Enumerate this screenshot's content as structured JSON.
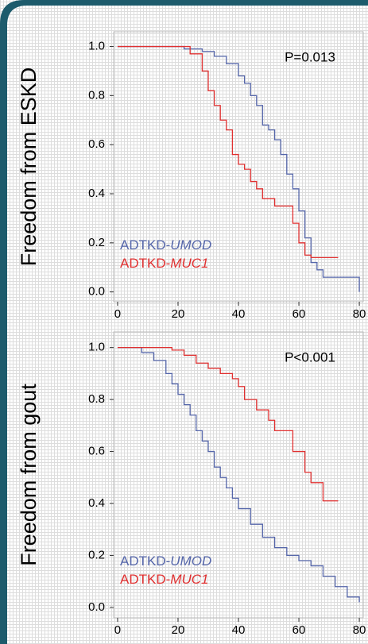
{
  "chart_data": [
    {
      "type": "step",
      "ylabel": "Freedom from ESKD",
      "annotation": "P=0.013",
      "xlim": [
        -1.3,
        81.3
      ],
      "ylim": [
        -0.04,
        1.06
      ],
      "xticks": [
        0,
        20,
        40,
        60,
        80
      ],
      "yticks": [
        {
          "value": 0,
          "label": "0.0"
        },
        {
          "value": 0.2,
          "label": "0.2"
        },
        {
          "value": 0.4,
          "label": "0.4"
        },
        {
          "value": 0.6,
          "label": "0.6"
        },
        {
          "value": 0.8,
          "label": "0.8"
        },
        {
          "value": 1,
          "label": "1.0"
        }
      ],
      "series": [
        {
          "name": "ADTKD-UMOD",
          "color": "#5566aa",
          "x": [
            0,
            15,
            22,
            28,
            32,
            36,
            40,
            42,
            44,
            46,
            48,
            50,
            52,
            54,
            56,
            58,
            60,
            62,
            64,
            66,
            68,
            78,
            80
          ],
          "values": [
            1.0,
            1.0,
            0.99,
            0.98,
            0.96,
            0.93,
            0.88,
            0.85,
            0.8,
            0.76,
            0.68,
            0.66,
            0.62,
            0.56,
            0.48,
            0.42,
            0.33,
            0.22,
            0.12,
            0.09,
            0.06,
            0.06,
            0.0
          ]
        },
        {
          "name": "ADTKD-MUC1",
          "color": "#e03030",
          "x": [
            0,
            20,
            24,
            28,
            30,
            32,
            34,
            36,
            38,
            40,
            42,
            44,
            46,
            48,
            52,
            56,
            58,
            60,
            62,
            64,
            73
          ],
          "values": [
            1.0,
            1.0,
            0.97,
            0.9,
            0.82,
            0.76,
            0.7,
            0.66,
            0.56,
            0.52,
            0.5,
            0.45,
            0.42,
            0.38,
            0.35,
            0.35,
            0.28,
            0.2,
            0.15,
            0.14,
            0.14
          ]
        }
      ]
    },
    {
      "type": "step",
      "ylabel": "Freedom from gout",
      "annotation": "P<0.001",
      "xlim": [
        -1.3,
        81.3
      ],
      "ylim": [
        -0.04,
        1.06
      ],
      "xticks": [
        0,
        20,
        40,
        60,
        80
      ],
      "yticks": [
        {
          "value": 0,
          "label": "0.0"
        },
        {
          "value": 0.2,
          "label": "0.2"
        },
        {
          "value": 0.4,
          "label": "0.4"
        },
        {
          "value": 0.6,
          "label": "0.6"
        },
        {
          "value": 0.8,
          "label": "0.8"
        },
        {
          "value": 1,
          "label": "1.0"
        }
      ],
      "series": [
        {
          "name": "ADTKD-UMOD",
          "color": "#5566aa",
          "x": [
            0,
            4,
            8,
            12,
            16,
            18,
            20,
            22,
            24,
            26,
            28,
            30,
            32,
            34,
            36,
            38,
            40,
            44,
            48,
            52,
            56,
            60,
            64,
            68,
            72,
            76,
            80
          ],
          "values": [
            1.0,
            1.0,
            0.98,
            0.95,
            0.9,
            0.86,
            0.82,
            0.78,
            0.74,
            0.68,
            0.64,
            0.6,
            0.54,
            0.5,
            0.46,
            0.42,
            0.38,
            0.32,
            0.27,
            0.23,
            0.2,
            0.18,
            0.16,
            0.12,
            0.08,
            0.04,
            0.02
          ]
        },
        {
          "name": "ADTKD-MUC1",
          "color": "#e03030",
          "x": [
            0,
            14,
            18,
            22,
            26,
            30,
            34,
            38,
            40,
            42,
            46,
            50,
            52,
            56,
            58,
            62,
            64,
            68,
            73
          ],
          "values": [
            1.0,
            1.0,
            0.99,
            0.97,
            0.94,
            0.92,
            0.9,
            0.88,
            0.85,
            0.8,
            0.76,
            0.72,
            0.68,
            0.68,
            0.6,
            0.52,
            0.48,
            0.41,
            0.41
          ]
        }
      ]
    }
  ]
}
